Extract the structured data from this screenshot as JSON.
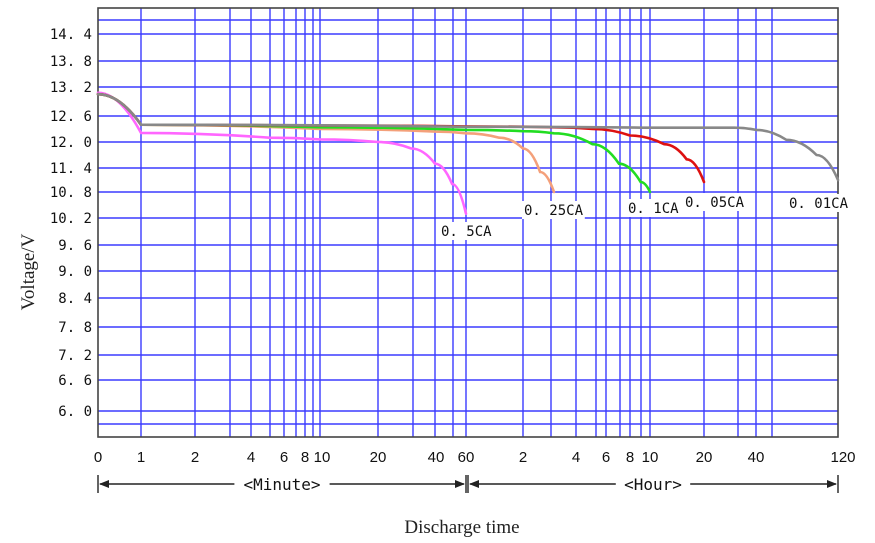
{
  "chart_data": {
    "type": "line",
    "title": "",
    "ylabel": "Voltage/V",
    "xlabel": "Discharge time",
    "yticks": [
      "14.4",
      "13.8",
      "13.2",
      "12.6",
      "12.0",
      "11.4",
      "10.8",
      "10.2",
      "9.6",
      "9.0",
      "8.4",
      "7.8",
      "7.2",
      "6.6",
      "6.0"
    ],
    "yticks_values": [
      14.4,
      13.8,
      13.2,
      12.6,
      12.0,
      11.4,
      10.8,
      10.2,
      9.6,
      9.0,
      8.4,
      7.8,
      7.2,
      6.6,
      6.0
    ],
    "x_minute_ticks": [
      "0",
      "1",
      "2",
      "4",
      "6",
      "8",
      "10",
      "20",
      "40",
      "60"
    ],
    "x_hour_ticks": [
      "2",
      "4",
      "6",
      "8",
      "10",
      "20",
      "40",
      "120"
    ],
    "x_spans": [
      "<Minute>",
      "<Hour>"
    ],
    "grid": true,
    "colors": {
      "grid": "#3b3bff",
      "0.5CA": "#ff66ff",
      "0.25CA": "#f4a07a",
      "0.1CA": "#22dd22",
      "0.05CA": "#dd1111",
      "0.01CA": "#888888"
    },
    "series": [
      {
        "name": "0.5CA",
        "x_minutes": [
          0,
          1,
          5,
          10,
          20,
          30,
          40,
          50,
          60
        ],
        "values": [
          13.08,
          12.21,
          12.1,
          12.06,
          12.0,
          11.85,
          11.5,
          11.0,
          10.3
        ]
      },
      {
        "name": "0.25CA",
        "x_minutes": [
          0,
          1,
          10,
          40,
          60,
          90,
          120,
          150,
          180
        ],
        "values": [
          13.05,
          12.4,
          12.3,
          12.24,
          12.2,
          12.1,
          11.85,
          11.3,
          10.8
        ]
      },
      {
        "name": "0.1CA",
        "x_minutes": [
          0,
          1,
          10,
          60,
          120,
          180,
          300,
          420,
          540,
          600
        ],
        "values": [
          13.05,
          12.4,
          12.34,
          12.28,
          12.25,
          12.2,
          11.95,
          11.5,
          11.05,
          10.8
        ]
      },
      {
        "name": "0.05CA",
        "x_minutes": [
          0,
          1,
          10,
          60,
          180,
          300,
          480,
          720,
          960,
          1200
        ],
        "values": [
          13.05,
          12.4,
          12.38,
          12.36,
          12.34,
          12.3,
          12.15,
          11.95,
          11.6,
          11.05
        ]
      },
      {
        "name": "0.01CA",
        "x_minutes": [
          0,
          1,
          60,
          600,
          1800,
          2400,
          3600,
          5400,
          7200
        ],
        "values": [
          13.05,
          12.4,
          12.35,
          12.33,
          12.33,
          12.28,
          12.05,
          11.7,
          11.1
        ]
      }
    ]
  }
}
